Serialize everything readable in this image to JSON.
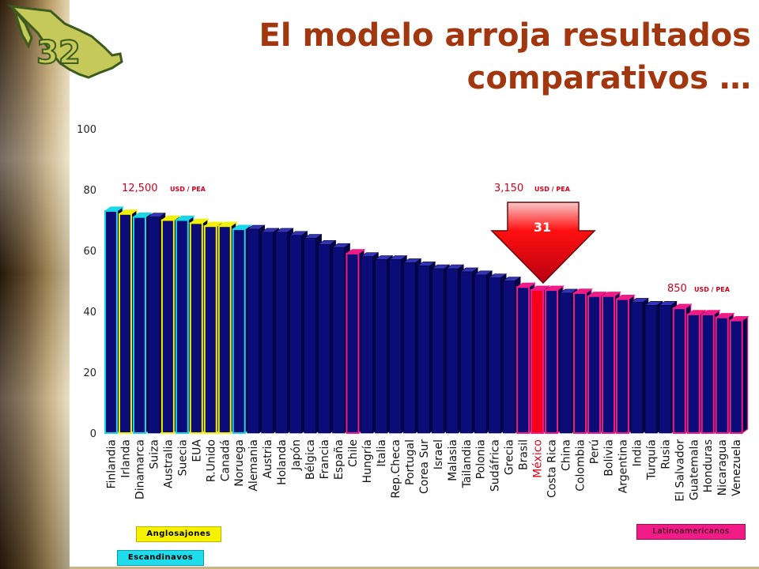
{
  "page": {
    "title_line1": "El modelo arroja resultados",
    "title_line2": "comparativos …",
    "logo_number": "32"
  },
  "annotations": {
    "left_value": "12,500",
    "left_unit": "USD / PEA",
    "mid_value": "3,150",
    "mid_unit": "USD / PEA",
    "right_value": "850",
    "right_unit": "USD / PEA",
    "arrow_label": "31"
  },
  "legend": {
    "anglosajones": "Anglosajones",
    "escandinavos": "Escandinavos",
    "latinoamericanos": "Latinoamericanos"
  },
  "colors": {
    "bar_fill": "#0c0c78",
    "bar_top": "#3434b8",
    "bar_side": "#050545",
    "anglosajones": "#f3f000",
    "escandinavos": "#18d8e8",
    "latinoamericanos": "#f01b86",
    "mexico_fill": "#f4001c",
    "title": "#a2360f",
    "annotation": "#d4001a"
  },
  "chart_data": {
    "type": "bar",
    "ylim": [
      0,
      100
    ],
    "yticks": [
      "0",
      "20",
      "40",
      "60",
      "80",
      "100"
    ],
    "categories": [
      "Finlandia",
      "Irlanda",
      "Dinamarca",
      "Suiza",
      "Australia",
      "Suecia",
      "EUA",
      "R.Unido",
      "Canadá",
      "Noruega",
      "Alemania",
      "Austria",
      "Holanda",
      "Japón",
      "Bélgica",
      "Francia",
      "España",
      "Chile",
      "Hungría",
      "Italia",
      "Rep.Checa",
      "Portugal",
      "Corea Sur",
      "Israel",
      "Malasia",
      "Tailandia",
      "Polonia",
      "Sudáfrica",
      "Grecia",
      "Brasil",
      "México",
      "Costa Rica",
      "China",
      "Colombia",
      "Perú",
      "Bolivia",
      "Argentina",
      "India",
      "Turquía",
      "Rusia",
      "El Salvador",
      "Guatemala",
      "Honduras",
      "Nicaragua",
      "Venezuela"
    ],
    "values": [
      73,
      72,
      71,
      71,
      70,
      70,
      69,
      68,
      68,
      67,
      67,
      66,
      66,
      65,
      64,
      62,
      61,
      59,
      58,
      57,
      57,
      56,
      55,
      54,
      54,
      53,
      52,
      51,
      50,
      48,
      47,
      47,
      46,
      46,
      45,
      45,
      44,
      43,
      42,
      42,
      41,
      39,
      39,
      38,
      37
    ],
    "groups": [
      "escandinavos",
      "anglosajones",
      "escandinavos",
      "",
      "anglosajones",
      "escandinavos",
      "anglosajones",
      "anglosajones",
      "anglosajones",
      "escandinavos",
      "",
      "",
      "",
      "",
      "",
      "",
      "",
      "latinoamericanos",
      "",
      "",
      "",
      "",
      "",
      "",
      "",
      "",
      "",
      "",
      "",
      "latinoamericanos",
      "mexico",
      "latinoamericanos",
      "",
      "latinoamericanos",
      "latinoamericanos",
      "latinoamericanos",
      "latinoamericanos",
      "",
      "",
      "",
      "latinoamericanos",
      "latinoamericanos",
      "latinoamericanos",
      "latinoamericanos",
      "latinoamericanos"
    ]
  }
}
